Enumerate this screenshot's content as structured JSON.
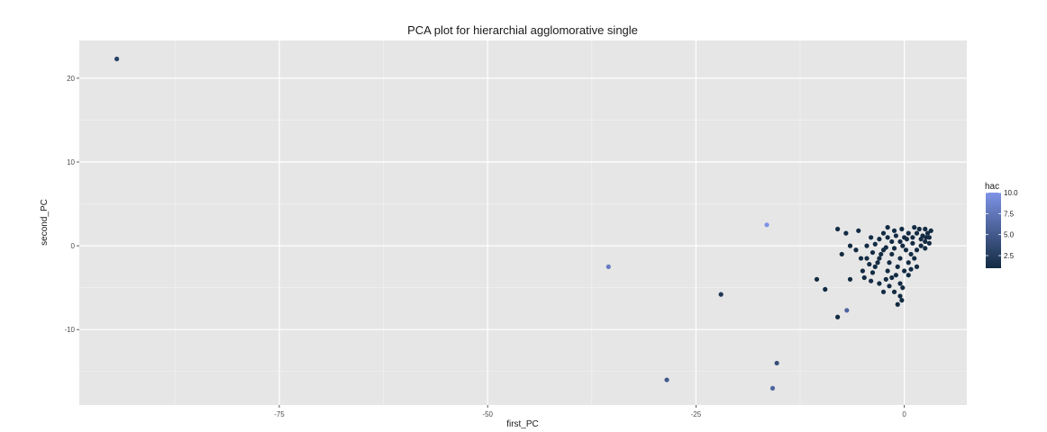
{
  "chart_data": {
    "type": "scatter",
    "title": "PCA plot for hierarchial agglomorative single",
    "xlabel": "first_PC",
    "ylabel": "second_PC",
    "xlim": [
      -99,
      7.5
    ],
    "ylim": [
      -19,
      24.5
    ],
    "x_ticks": [
      -75,
      -50,
      -25,
      0
    ],
    "x_tick_labels": [
      "-75",
      "-50",
      "-25",
      "0"
    ],
    "y_ticks": [
      -10,
      0,
      10,
      20
    ],
    "y_tick_labels": [
      "-10",
      "0",
      "10",
      "20"
    ],
    "grid": true,
    "panel_background": "#e6e6e6",
    "legend": {
      "title": "hac",
      "position": "right",
      "color_low": "#132b43",
      "color_high": "#7f93e6",
      "range": [
        1,
        10
      ],
      "ticks": [
        2.5,
        5.0,
        7.5,
        10.0
      ],
      "tick_labels": [
        "2.5",
        "5.0",
        "7.5",
        "10.0"
      ]
    },
    "points": [
      {
        "x": -94.5,
        "y": 22.3,
        "hac": 3
      },
      {
        "x": -16.5,
        "y": 2.5,
        "hac": 10
      },
      {
        "x": -35.5,
        "y": -2.5,
        "hac": 8
      },
      {
        "x": -22,
        "y": -5.8,
        "hac": 2
      },
      {
        "x": -28.5,
        "y": -16,
        "hac": 5
      },
      {
        "x": -15.3,
        "y": -14,
        "hac": 4
      },
      {
        "x": -15.8,
        "y": -17,
        "hac": 6
      },
      {
        "x": -6.9,
        "y": -7.7,
        "hac": 6
      },
      {
        "x": -8,
        "y": -8.5,
        "hac": 1
      },
      {
        "x": -9.5,
        "y": -5.2,
        "hac": 1
      },
      {
        "x": -10.5,
        "y": -4,
        "hac": 1
      },
      {
        "x": -6.5,
        "y": -4,
        "hac": 1
      },
      {
        "x": -8,
        "y": 2,
        "hac": 1
      },
      {
        "x": -7,
        "y": 1.5,
        "hac": 1
      },
      {
        "x": -5.5,
        "y": 1.8,
        "hac": 1
      },
      {
        "x": -6.5,
        "y": 0,
        "hac": 1
      },
      {
        "x": -5.8,
        "y": -0.5,
        "hac": 1
      },
      {
        "x": -7.5,
        "y": -1,
        "hac": 1
      },
      {
        "x": -4.5,
        "y": -1.5,
        "hac": 1
      },
      {
        "x": -3.5,
        "y": -2.5,
        "hac": 1
      },
      {
        "x": -5,
        "y": -3,
        "hac": 1
      },
      {
        "x": -4,
        "y": -4.2,
        "hac": 1
      },
      {
        "x": -3,
        "y": -4.5,
        "hac": 1
      },
      {
        "x": -2.5,
        "y": -5.5,
        "hac": 1
      },
      {
        "x": -1.8,
        "y": -4.8,
        "hac": 1
      },
      {
        "x": -1.2,
        "y": -5.5,
        "hac": 1
      },
      {
        "x": -0.5,
        "y": -6,
        "hac": 1
      },
      {
        "x": -0.3,
        "y": -6.5,
        "hac": 1
      },
      {
        "x": -0.8,
        "y": -7,
        "hac": 1
      },
      {
        "x": -0.2,
        "y": -5,
        "hac": 1
      },
      {
        "x": -1,
        "y": -3.5,
        "hac": 1
      },
      {
        "x": -2,
        "y": -3,
        "hac": 1
      },
      {
        "x": -3,
        "y": -1.5,
        "hac": 1
      },
      {
        "x": -2.5,
        "y": -0.5,
        "hac": 1
      },
      {
        "x": -1.5,
        "y": -1,
        "hac": 1
      },
      {
        "x": -0.5,
        "y": -1.5,
        "hac": 1
      },
      {
        "x": 0.5,
        "y": -2,
        "hac": 1
      },
      {
        "x": 0,
        "y": -3,
        "hac": 1
      },
      {
        "x": 0.8,
        "y": -1,
        "hac": 1
      },
      {
        "x": 1.5,
        "y": -0.5,
        "hac": 1
      },
      {
        "x": 2,
        "y": 0,
        "hac": 1
      },
      {
        "x": 2.5,
        "y": 0.5,
        "hac": 1
      },
      {
        "x": 3,
        "y": 1,
        "hac": 1
      },
      {
        "x": 2.8,
        "y": 1.5,
        "hac": 1
      },
      {
        "x": 2.2,
        "y": 1.2,
        "hac": 1
      },
      {
        "x": 1.5,
        "y": 1.5,
        "hac": 1
      },
      {
        "x": 1.8,
        "y": 2,
        "hac": 1
      },
      {
        "x": 0.5,
        "y": 1.5,
        "hac": 1
      },
      {
        "x": 0,
        "y": 1,
        "hac": 1
      },
      {
        "x": -0.5,
        "y": 0.5,
        "hac": 1
      },
      {
        "x": -1,
        "y": 1.2,
        "hac": 1
      },
      {
        "x": -1.5,
        "y": 0.5,
        "hac": 1
      },
      {
        "x": -2,
        "y": 1,
        "hac": 1
      },
      {
        "x": -2.5,
        "y": 1.5,
        "hac": 1
      },
      {
        "x": -3,
        "y": 0.8,
        "hac": 1
      },
      {
        "x": -3.5,
        "y": 0.2,
        "hac": 1
      },
      {
        "x": -4,
        "y": 1,
        "hac": 1
      },
      {
        "x": -4.5,
        "y": 0,
        "hac": 1
      },
      {
        "x": -3.8,
        "y": -0.8,
        "hac": 1
      },
      {
        "x": -2.8,
        "y": -1,
        "hac": 1
      },
      {
        "x": -1.8,
        "y": -2,
        "hac": 1
      },
      {
        "x": -0.8,
        "y": -2.5,
        "hac": 1
      },
      {
        "x": 0.2,
        "y": -0.5,
        "hac": 1
      },
      {
        "x": 1,
        "y": 0.3,
        "hac": 1
      },
      {
        "x": 1.2,
        "y": -1.5,
        "hac": 1
      },
      {
        "x": 2.5,
        "y": -0.3,
        "hac": 1
      },
      {
        "x": 3,
        "y": 0.3,
        "hac": 1
      },
      {
        "x": 2,
        "y": 0.8,
        "hac": 1
      },
      {
        "x": 1,
        "y": 1,
        "hac": 1
      },
      {
        "x": -0.2,
        "y": 0,
        "hac": 1
      },
      {
        "x": -1.2,
        "y": -0.3,
        "hac": 1
      },
      {
        "x": -2.2,
        "y": -0.2,
        "hac": 1
      },
      {
        "x": -3.2,
        "y": -2,
        "hac": 1
      },
      {
        "x": -4.2,
        "y": -2.2,
        "hac": 1
      },
      {
        "x": -5.2,
        "y": -1.5,
        "hac": 1
      },
      {
        "x": -4.8,
        "y": -3.8,
        "hac": 1
      },
      {
        "x": -3.8,
        "y": -3.2,
        "hac": 1
      },
      {
        "x": -2.2,
        "y": -4,
        "hac": 1
      },
      {
        "x": -1.5,
        "y": -3.8,
        "hac": 1
      },
      {
        "x": -0.5,
        "y": -4.5,
        "hac": 1
      },
      {
        "x": 0.5,
        "y": -3.5,
        "hac": 1
      },
      {
        "x": 1.5,
        "y": -2.5,
        "hac": 1
      },
      {
        "x": 0.8,
        "y": -2.8,
        "hac": 1
      },
      {
        "x": -0.3,
        "y": 2,
        "hac": 1
      },
      {
        "x": 1.2,
        "y": 2.2,
        "hac": 1
      },
      {
        "x": 2.5,
        "y": 2,
        "hac": 1
      },
      {
        "x": -2,
        "y": 2.2,
        "hac": 1
      },
      {
        "x": -1.2,
        "y": 1.8,
        "hac": 1
      },
      {
        "x": 0.3,
        "y": 0.8,
        "hac": 1
      },
      {
        "x": 3.2,
        "y": 1.8,
        "hac": 1
      },
      {
        "x": 2.6,
        "y": 1,
        "hac": 1
      }
    ]
  }
}
